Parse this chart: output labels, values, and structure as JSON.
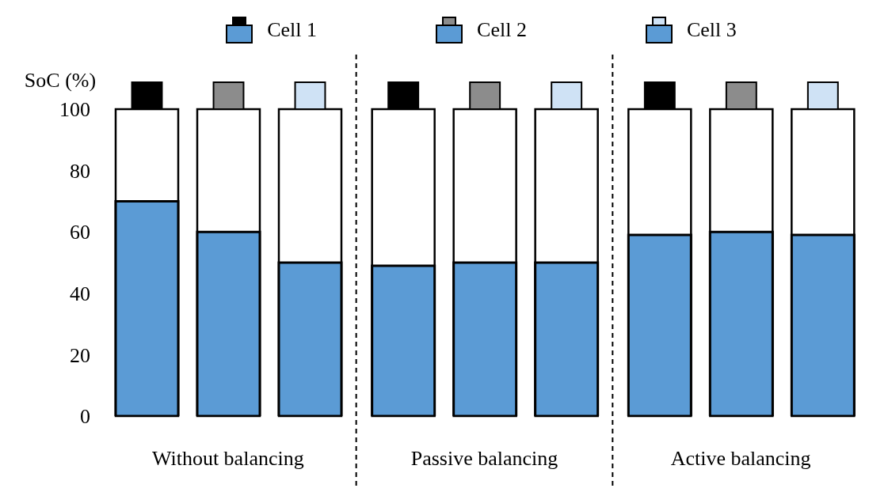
{
  "chart_data": {
    "type": "bar",
    "ylabel": "SoC (%)",
    "categories": [
      "Without balancing",
      "Passive balancing",
      "Active balancing"
    ],
    "series": [
      {
        "name": "Cell 1",
        "color": "#5b9bd5",
        "values": [
          70,
          49,
          59
        ]
      },
      {
        "name": "Cell 2",
        "color": "#5b9bd5",
        "values": [
          60,
          50,
          60
        ]
      },
      {
        "name": "Cell 3",
        "color": "#5b9bd5",
        "values": [
          50,
          50,
          59
        ]
      }
    ],
    "ylim": [
      0,
      100
    ],
    "yticks": [
      0,
      20,
      40,
      60,
      80,
      100
    ],
    "grid": false,
    "legend": "top"
  }
}
